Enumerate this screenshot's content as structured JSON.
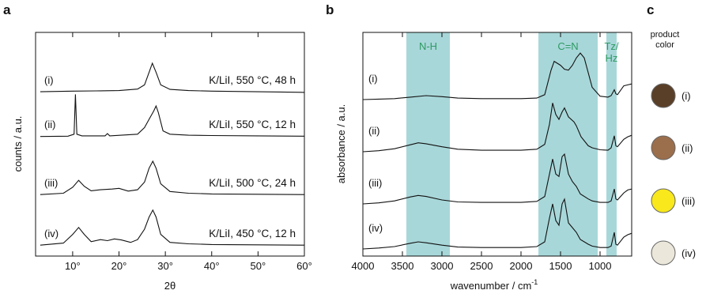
{
  "panel_labels": {
    "a": "a",
    "b": "b",
    "c": "c"
  },
  "chart_data": [
    {
      "type": "line",
      "panel": "a",
      "xlabel": "2θ",
      "ylabel": "counts / a.u.",
      "xlim": [
        2,
        60
      ],
      "xticks": [
        10,
        20,
        30,
        40,
        50,
        60
      ],
      "xtick_labels": [
        "10°",
        "20°",
        "30°",
        "40°",
        "50°",
        "60°"
      ],
      "series": [
        {
          "name": "(i)",
          "label": "K/LiI, 550 °C, 48 h",
          "x": [
            3,
            10,
            15,
            20,
            24,
            25.5,
            26.5,
            27.2,
            28,
            29,
            31,
            35,
            40,
            50,
            60
          ],
          "y": [
            0.05,
            0.07,
            0.08,
            0.09,
            0.14,
            0.28,
            0.7,
            1.0,
            0.7,
            0.28,
            0.13,
            0.09,
            0.07,
            0.05,
            0.03
          ]
        },
        {
          "name": "(ii)",
          "label": "K/LiI, 550 °C, 12 h",
          "x": [
            3,
            9,
            10.3,
            10.6,
            10.9,
            12,
            17,
            17.5,
            18,
            24,
            25.5,
            26.5,
            27.5,
            28,
            28.5,
            29.5,
            31,
            35,
            40,
            50,
            60
          ],
          "y": [
            0.03,
            0.04,
            0.1,
            1.3,
            0.1,
            0.05,
            0.05,
            0.12,
            0.05,
            0.1,
            0.3,
            0.55,
            0.8,
            0.95,
            0.75,
            0.2,
            0.1,
            0.07,
            0.06,
            0.05,
            0.04
          ]
        },
        {
          "name": "(iii)",
          "label": "K/LiI, 500 °C, 24 h",
          "x": [
            3,
            8,
            10,
            11.3,
            12.5,
            14,
            16,
            18.5,
            20,
            22,
            24,
            25.5,
            26.5,
            27.3,
            28,
            29,
            31,
            35,
            40,
            50,
            60
          ],
          "y": [
            0.04,
            0.08,
            0.25,
            0.45,
            0.28,
            0.15,
            0.18,
            0.2,
            0.22,
            0.14,
            0.18,
            0.4,
            0.8,
            1.0,
            0.8,
            0.35,
            0.13,
            0.08,
            0.06,
            0.05,
            0.04
          ]
        },
        {
          "name": "(iv)",
          "label": "K/LiI, 450 °C, 12 h",
          "x": [
            3,
            8,
            10,
            11.3,
            12.5,
            14,
            16,
            17.5,
            19,
            20.5,
            22.5,
            24,
            25.5,
            26.5,
            27.3,
            28,
            29,
            31,
            35,
            40,
            50,
            60
          ],
          "y": [
            0.04,
            0.1,
            0.35,
            0.55,
            0.35,
            0.14,
            0.2,
            0.17,
            0.22,
            0.19,
            0.12,
            0.2,
            0.5,
            0.85,
            1.05,
            0.85,
            0.35,
            0.12,
            0.08,
            0.06,
            0.05,
            0.04
          ]
        }
      ]
    },
    {
      "type": "line",
      "panel": "b",
      "xlabel": "wavenumber / cm",
      "xlabel_sup": "-1",
      "ylabel": "absorbance / a.u.",
      "xlim": [
        4000,
        600
      ],
      "xticks": [
        4000,
        3500,
        3000,
        2500,
        2000,
        1500,
        1000
      ],
      "xtick_labels": [
        "4000",
        "3500",
        "3000",
        "2500",
        "2000",
        "1500",
        "1000"
      ],
      "highlight_bands": [
        {
          "label": "N-H",
          "range": [
            3450,
            2900
          ],
          "color": "#a8d7d9"
        },
        {
          "label": "C=N",
          "range": [
            1780,
            1030
          ],
          "color": "#a8d7d9"
        },
        {
          "label": "Tz/\nHz",
          "range": [
            920,
            790
          ],
          "color": "#a8d7d9"
        }
      ],
      "series": [
        {
          "name": "(i)",
          "x": [
            4000,
            3800,
            3600,
            3400,
            3200,
            3000,
            2800,
            2500,
            2000,
            1800,
            1700,
            1620,
            1580,
            1500,
            1450,
            1400,
            1350,
            1300,
            1250,
            1200,
            1150,
            1100,
            1000,
            900,
            860,
            820,
            800,
            780,
            700,
            650,
            600
          ],
          "y": [
            0.0,
            0.01,
            0.02,
            0.05,
            0.08,
            0.06,
            0.03,
            0.02,
            0.02,
            0.03,
            0.1,
            0.6,
            0.78,
            0.7,
            0.62,
            0.6,
            0.7,
            0.85,
            0.95,
            0.85,
            0.55,
            0.25,
            0.07,
            0.05,
            0.08,
            0.2,
            0.12,
            0.1,
            0.28,
            0.3,
            0.32
          ]
        },
        {
          "name": "(ii)",
          "x": [
            4000,
            3800,
            3600,
            3400,
            3300,
            3200,
            3000,
            2800,
            2500,
            2000,
            1800,
            1700,
            1640,
            1600,
            1560,
            1520,
            1480,
            1450,
            1400,
            1330,
            1300,
            1240,
            1150,
            1100,
            1000,
            900,
            860,
            820,
            800,
            780,
            700,
            650,
            600
          ],
          "y": [
            0.0,
            0.02,
            0.06,
            0.14,
            0.18,
            0.16,
            0.1,
            0.05,
            0.03,
            0.03,
            0.05,
            0.15,
            0.55,
            0.98,
            0.75,
            0.65,
            0.8,
            0.88,
            0.7,
            0.6,
            0.52,
            0.3,
            0.12,
            0.08,
            0.04,
            0.03,
            0.08,
            0.32,
            0.12,
            0.1,
            0.25,
            0.3,
            0.33
          ]
        },
        {
          "name": "(iii)",
          "x": [
            4000,
            3800,
            3600,
            3400,
            3300,
            3200,
            3000,
            2800,
            2500,
            2000,
            1800,
            1700,
            1640,
            1600,
            1560,
            1520,
            1480,
            1450,
            1400,
            1350,
            1300,
            1250,
            1150,
            1100,
            1000,
            900,
            860,
            820,
            800,
            780,
            700,
            650,
            600
          ],
          "y": [
            0.0,
            0.02,
            0.06,
            0.14,
            0.17,
            0.15,
            0.08,
            0.04,
            0.03,
            0.03,
            0.05,
            0.15,
            0.6,
            0.9,
            0.6,
            0.55,
            0.95,
            1.0,
            0.6,
            0.45,
            0.35,
            0.2,
            0.1,
            0.06,
            0.03,
            0.03,
            0.06,
            0.3,
            0.1,
            0.08,
            0.22,
            0.28,
            0.3
          ]
        },
        {
          "name": "(iv)",
          "x": [
            4000,
            3800,
            3600,
            3400,
            3300,
            3200,
            3000,
            2800,
            2500,
            2000,
            1800,
            1700,
            1640,
            1600,
            1560,
            1520,
            1480,
            1450,
            1400,
            1350,
            1300,
            1250,
            1150,
            1100,
            1000,
            900,
            860,
            820,
            800,
            780,
            700,
            650,
            600
          ],
          "y": [
            0.0,
            0.02,
            0.05,
            0.12,
            0.15,
            0.13,
            0.08,
            0.04,
            0.03,
            0.03,
            0.05,
            0.15,
            0.65,
            0.95,
            0.6,
            0.5,
            0.95,
            1.05,
            0.55,
            0.45,
            0.35,
            0.2,
            0.1,
            0.06,
            0.03,
            0.03,
            0.06,
            0.35,
            0.1,
            0.08,
            0.25,
            0.3,
            0.33
          ]
        }
      ]
    }
  ],
  "product_color": {
    "title_line1": "product",
    "title_line2": "color",
    "items": [
      {
        "name": "(i)",
        "color": "#5a3f28"
      },
      {
        "name": "(ii)",
        "color": "#9b6e4c"
      },
      {
        "name": "(iii)",
        "color": "#f8e81c"
      },
      {
        "name": "(iv)",
        "color": "#ebe7da"
      }
    ]
  }
}
